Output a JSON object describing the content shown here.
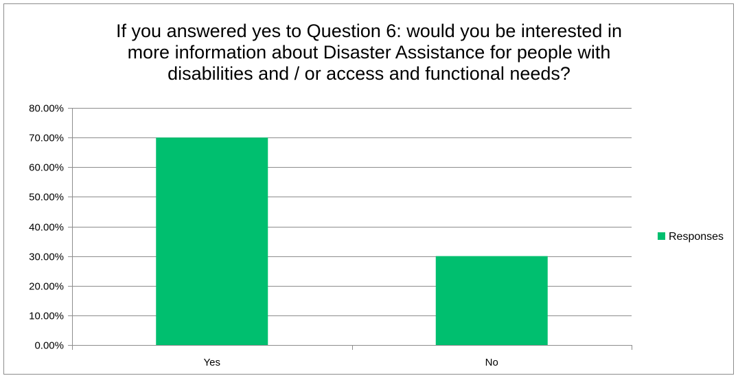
{
  "chart_data": {
    "type": "bar",
    "title_lines": [
      "If you answered yes to Question 6: would you be interested in",
      "more information about Disaster Assistance for people with",
      "disabilities and / or access and functional needs?"
    ],
    "categories": [
      "Yes",
      "No"
    ],
    "series": [
      {
        "name": "Responses",
        "values": [
          0.7,
          0.3
        ],
        "color": "#00bf6f"
      }
    ],
    "ylim": [
      0,
      0.8
    ],
    "ytick_step": 0.1,
    "ytick_labels": [
      "0.00%",
      "10.00%",
      "20.00%",
      "30.00%",
      "40.00%",
      "50.00%",
      "60.00%",
      "70.00%",
      "80.00%"
    ],
    "grid": true,
    "legend": "right",
    "xlabel": "",
    "ylabel": ""
  }
}
